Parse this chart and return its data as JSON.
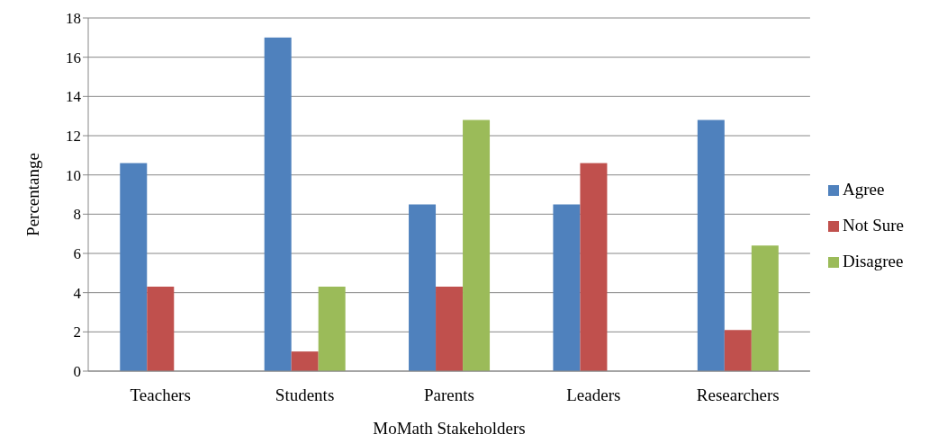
{
  "chart_data": {
    "type": "bar",
    "xlabel": "MoMath Stakeholders",
    "ylabel": "Percentange",
    "categories": [
      "Teachers",
      "Students",
      "Parents",
      "Leaders",
      "Researchers"
    ],
    "series": [
      {
        "name": "Agree",
        "color": "#4f81bd",
        "values": [
          10.6,
          17,
          8.5,
          8.5,
          12.8
        ]
      },
      {
        "name": "Not Sure",
        "color": "#c0504d",
        "values": [
          4.3,
          1,
          4.3,
          10.6,
          2.1
        ]
      },
      {
        "name": "Disagree",
        "color": "#9bbb59",
        "values": [
          0,
          4.3,
          12.8,
          0,
          6.4
        ]
      }
    ],
    "ylim": [
      0,
      18
    ],
    "yticks": [
      0,
      2,
      4,
      6,
      8,
      10,
      12,
      14,
      16,
      18
    ],
    "grid": "y",
    "legend": "right"
  }
}
